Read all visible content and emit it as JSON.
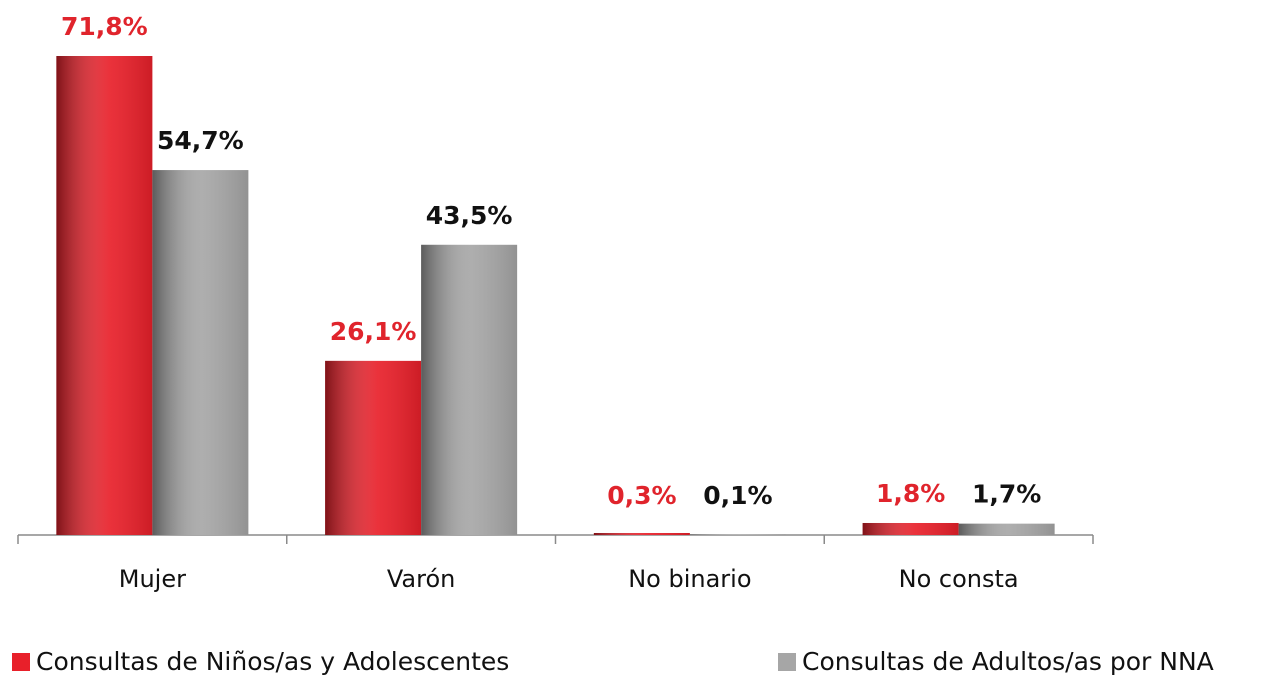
{
  "chart_data": {
    "type": "bar",
    "categories": [
      "Mujer",
      "Varón",
      "No binario",
      "No consta"
    ],
    "series": [
      {
        "name": "Consultas de Niños/as y Adolescentes",
        "color": "#e8202a",
        "values": [
          71.8,
          26.1,
          0.3,
          1.8
        ],
        "value_labels": [
          "71,8%",
          "26,1%",
          "0,3%",
          "1,8%"
        ]
      },
      {
        "name": "Consultas de Adultos/as por NNA",
        "color": "#a6a6a6",
        "values": [
          54.7,
          43.5,
          0.1,
          1.7
        ],
        "value_labels": [
          "54,7%",
          "43,5%",
          "0,1%",
          "1,7%"
        ]
      }
    ]
  }
}
